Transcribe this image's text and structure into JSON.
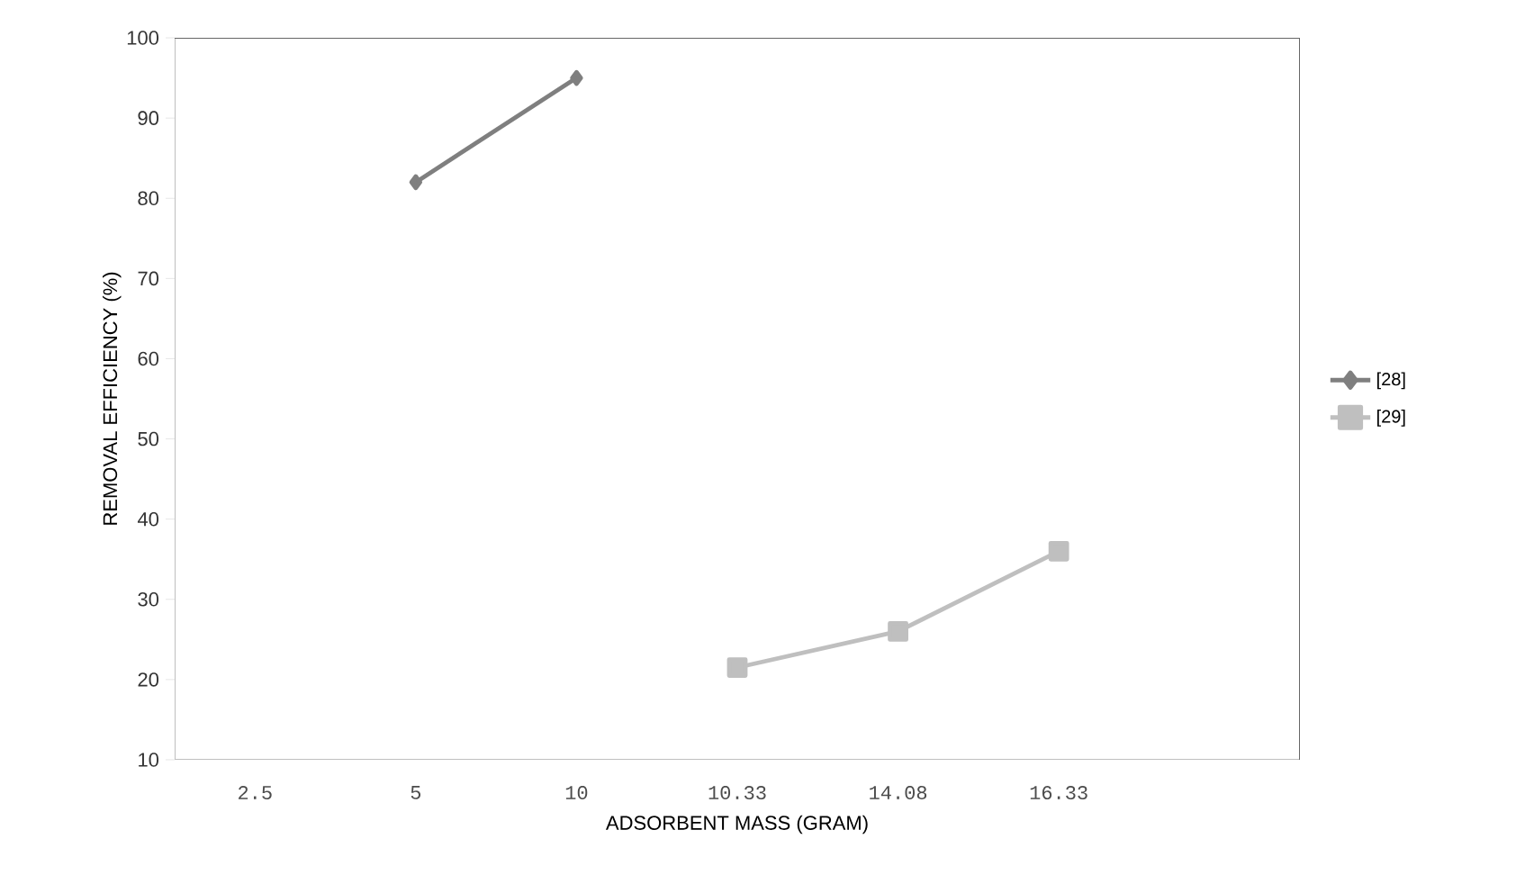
{
  "chart_data": {
    "type": "line",
    "xlabel": "ADSORBENT MASS (GRAM)",
    "ylabel": "REMOVAL EFFICIENCY (%)",
    "categories": [
      "2.5",
      "5",
      "10",
      "10.33",
      "14.08",
      "16.33",
      null
    ],
    "series": [
      {
        "name": "[28]",
        "color": "#7f7f7f",
        "marker": "diamond",
        "values": [
          null,
          82,
          95,
          null,
          null,
          null,
          null
        ]
      },
      {
        "name": "[29]",
        "color": "#bfbfbf",
        "marker": "square",
        "values": [
          null,
          null,
          null,
          21.5,
          26,
          36,
          null
        ]
      }
    ],
    "ylim": [
      10,
      100
    ],
    "yticks": [
      10,
      20,
      30,
      40,
      50,
      60,
      70,
      80,
      90,
      100
    ],
    "grid": false,
    "legend": "right",
    "line_style": "solid"
  }
}
